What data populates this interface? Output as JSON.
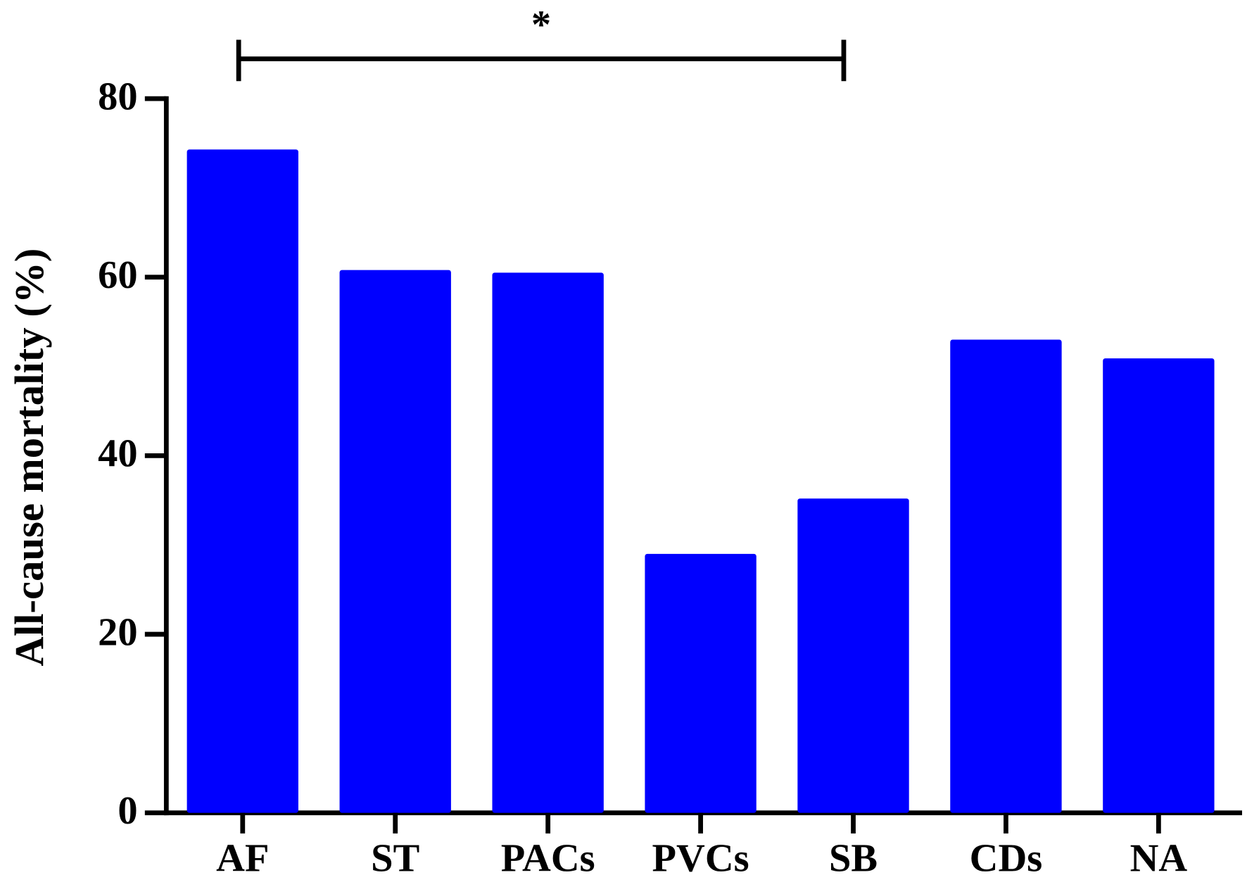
{
  "chart_data": {
    "type": "bar",
    "y_label": "All-cause mortality (%)",
    "categories": [
      "AF",
      "ST",
      "PACs",
      "PVCs",
      "SB",
      "CDs",
      "NA"
    ],
    "values": [
      74.3,
      60.8,
      60.5,
      29.0,
      35.2,
      53.0,
      50.9
    ],
    "color": "#0000ff",
    "ylim": [
      0,
      80
    ],
    "yticks": [
      0,
      20,
      40,
      60,
      80
    ],
    "grid": false,
    "annotation": "*"
  }
}
